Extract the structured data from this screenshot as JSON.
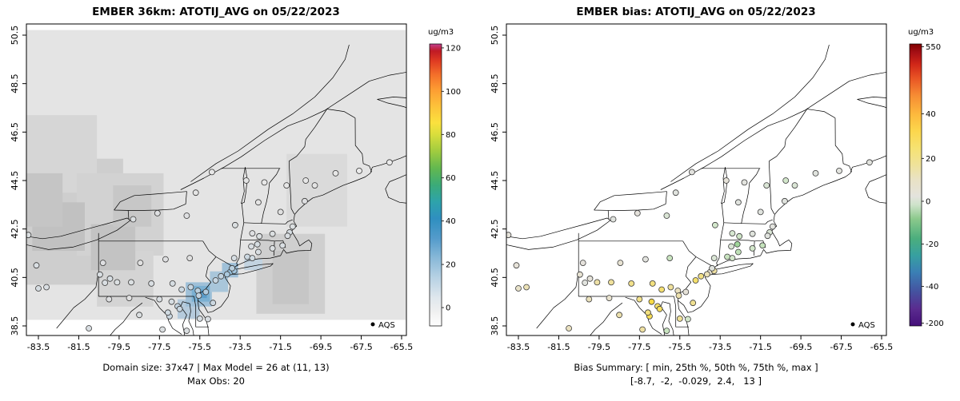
{
  "chart_data": {
    "type": "map-scatter",
    "projection": "lonlat",
    "xlim": [
      -84.1,
      -65.26
    ],
    "ylim": [
      38.1,
      50.96
    ],
    "maps": [
      {
        "title": "EMBER 36km: ATOTIJ_AVG on 05/22/2023",
        "kind": "gridded-model-field-with-obs-points",
        "xticks": [
          -83.5,
          -81.5,
          -79.5,
          -77.5,
          -75.5,
          -73.5,
          -71.5,
          -69.5,
          -67.5,
          -65.5
        ],
        "yticks": [
          38.5,
          40.5,
          42.5,
          44.5,
          46.5,
          48.5,
          50.5
        ],
        "footer_line1": "Domain size: 37x47 | Max Model = 26 at (11, 13)",
        "footer_line2": "Max Obs: 20",
        "legend_label": "AQS",
        "point_value_key": "obs",
        "point_color_anchors": [
          [
            0,
            "#f5f5f5"
          ],
          [
            6,
            "#e0e0e0"
          ],
          [
            10,
            "#d6dde2"
          ],
          [
            14,
            "#c2d3e0"
          ],
          [
            17,
            "#aac9de"
          ],
          [
            20,
            "#93bedb"
          ],
          [
            26,
            "#5ba3d0"
          ]
        ],
        "colorbar": {
          "title": "ug/m3",
          "ticks": [
            {
              "label": "0",
              "f": 0.065
            },
            {
              "label": "20",
              "f": 0.218
            },
            {
              "label": "40",
              "f": 0.372
            },
            {
              "label": "60",
              "f": 0.525
            },
            {
              "label": "80",
              "f": 0.679
            },
            {
              "label": "100",
              "f": 0.832
            },
            {
              "label": "120",
              "f": 0.986
            }
          ],
          "stops": [
            [
              0,
              "#ffffff"
            ],
            [
              0.05,
              "#f0f0f0"
            ],
            [
              0.1,
              "#dfe7ed"
            ],
            [
              0.17,
              "#b8d2e4"
            ],
            [
              0.24,
              "#89b9d8"
            ],
            [
              0.31,
              "#549bcb"
            ],
            [
              0.38,
              "#2f8fc0"
            ],
            [
              0.44,
              "#2ea3ab"
            ],
            [
              0.5,
              "#3bab78"
            ],
            [
              0.56,
              "#63b84f"
            ],
            [
              0.62,
              "#a1cc3f"
            ],
            [
              0.68,
              "#dade3c"
            ],
            [
              0.72,
              "#fbe13e"
            ],
            [
              0.78,
              "#fdc13a"
            ],
            [
              0.84,
              "#fd9b32"
            ],
            [
              0.89,
              "#f4702a"
            ],
            [
              0.94,
              "#df3b22"
            ],
            [
              0.975,
              "#c01a24"
            ],
            [
              1,
              "#c2408e"
            ]
          ]
        },
        "raster_blocks": [
          [
            -84.09,
            38.75,
            -65.3,
            50.71,
            "#e4e4e4"
          ],
          [
            -84.09,
            40.2,
            -79.3,
            45.4,
            "#cecece"
          ],
          [
            -84.09,
            44.0,
            -80.6,
            47.2,
            "#d6d6d6"
          ],
          [
            -81.6,
            41.4,
            -77.3,
            44.8,
            "#d2d2d2"
          ],
          [
            -80.6,
            39.3,
            -77.8,
            41.6,
            "#d4d4d4"
          ],
          [
            -72.7,
            39.0,
            -69.3,
            42.3,
            "#cfcfcf"
          ],
          [
            -71.2,
            42.6,
            -68.2,
            45.6,
            "#dadada"
          ],
          [
            -83.8,
            41.6,
            -81.2,
            43.6,
            "#c1c1c1"
          ],
          [
            -80.9,
            40.8,
            -78.7,
            42.7,
            "#c3c3c3"
          ],
          [
            -84.09,
            42.6,
            -82.3,
            44.8,
            "#c5c5c5"
          ],
          [
            -79.8,
            42.6,
            -77.9,
            44.3,
            "#c7c7c7"
          ],
          [
            -71.9,
            39.4,
            -70.1,
            41.6,
            "#c6c6c6"
          ],
          [
            -76.6,
            38.8,
            -75.5,
            39.6,
            "#b6cbdc"
          ],
          [
            -76.2,
            39.3,
            -74.9,
            40.3,
            "#9fc0d8"
          ],
          [
            -75.9,
            39.5,
            -75.0,
            40.15,
            "#7bb0d2"
          ],
          [
            -75.7,
            39.65,
            -75.15,
            40.0,
            "#5b9cc9"
          ],
          [
            -75.0,
            39.9,
            -74.1,
            40.75,
            "#a9c6da"
          ],
          [
            -74.4,
            40.5,
            -73.6,
            41.1,
            "#9fc0d8"
          ],
          [
            -73.3,
            40.8,
            -72.4,
            41.25,
            "#c2d3e0"
          ]
        ]
      },
      {
        "title": "EMBER bias: ATOTIJ_AVG on 05/22/2023",
        "kind": "obs-bias-points",
        "xticks": [
          -83.5,
          -81.5,
          -79.5,
          -77.5,
          -75.5,
          -73.5,
          -71.5,
          -69.5,
          -67.5,
          -65.5
        ],
        "yticks": [
          38.5,
          40.5,
          42.5,
          44.5,
          46.5,
          48.5,
          50.5
        ],
        "footer_line1": "Bias Summary: [ min, 25th %, 50th %, 75th %, max ]",
        "footer_line2": "[-8.7,  -2,  -0.029,  2.4,   13 ]",
        "legend_label": "AQS",
        "point_value_key": "bias",
        "point_color_anchors": [
          [
            -200,
            "#54278f"
          ],
          [
            -40,
            "#3a93c3"
          ],
          [
            -20,
            "#6abf71"
          ],
          [
            -10,
            "#96d292"
          ],
          [
            -6,
            "#b4ddab"
          ],
          [
            -3,
            "#d3e7cb"
          ],
          [
            -1,
            "#e0e3de"
          ],
          [
            0,
            "#e4e2de"
          ],
          [
            1,
            "#e7e2d2"
          ],
          [
            3,
            "#ece0ad"
          ],
          [
            6,
            "#f1e08b"
          ],
          [
            9,
            "#f5df66"
          ],
          [
            13,
            "#f8da45"
          ],
          [
            20,
            "#fee24f"
          ],
          [
            40,
            "#fd9a44"
          ],
          [
            550,
            "#7f0000"
          ]
        ],
        "colorbar": {
          "title": "ug/m3",
          "ticks": [
            {
              "label": "550",
              "f": 0.99
            },
            {
              "label": "40",
              "f": 0.752
            },
            {
              "label": "20",
              "f": 0.594
            },
            {
              "label": "0",
              "f": 0.442
            },
            {
              "label": "-20",
              "f": 0.29
            },
            {
              "label": "-40",
              "f": 0.14
            },
            {
              "label": "-200",
              "f": 0.01
            }
          ],
          "stops": [
            [
              0,
              "#45107a"
            ],
            [
              0.06,
              "#5a2b8f"
            ],
            [
              0.12,
              "#45519f"
            ],
            [
              0.19,
              "#3a7fb5"
            ],
            [
              0.25,
              "#37a0a0"
            ],
            [
              0.31,
              "#4bae7d"
            ],
            [
              0.38,
              "#8cc98c"
            ],
            [
              0.43,
              "#cfe3cb"
            ],
            [
              0.46,
              "#e4e3dd"
            ],
            [
              0.52,
              "#e9e2c4"
            ],
            [
              0.57,
              "#efe29b"
            ],
            [
              0.63,
              "#f6e272"
            ],
            [
              0.69,
              "#fcd74d"
            ],
            [
              0.75,
              "#fdb93d"
            ],
            [
              0.82,
              "#f68a33"
            ],
            [
              0.88,
              "#e85324"
            ],
            [
              0.93,
              "#cf2518"
            ],
            [
              0.97,
              "#a50f15"
            ],
            [
              1,
              "#7f0000"
            ]
          ]
        },
        "raster_blocks": []
      }
    ],
    "sites": [
      {
        "lon": -84.0,
        "lat": 42.25,
        "obs": 8,
        "bias": 0.3
      },
      {
        "lon": -83.6,
        "lat": 41.0,
        "obs": 9,
        "bias": 0.5
      },
      {
        "lon": -83.5,
        "lat": 40.05,
        "obs": 10,
        "bias": 1.5
      },
      {
        "lon": -83.1,
        "lat": 40.1,
        "obs": 9,
        "bias": 2.5
      },
      {
        "lon": -81.0,
        "lat": 38.4,
        "obs": 9,
        "bias": 2.0
      },
      {
        "lon": -80.45,
        "lat": 40.62,
        "obs": 9,
        "bias": 1.0
      },
      {
        "lon": -79.95,
        "lat": 40.45,
        "obs": 10,
        "bias": 0.4
      },
      {
        "lon": -80.2,
        "lat": 40.28,
        "obs": 9,
        "bias": -0.8
      },
      {
        "lon": -79.6,
        "lat": 40.3,
        "obs": 8,
        "bias": 3.5
      },
      {
        "lon": -80.3,
        "lat": 41.1,
        "obs": 7,
        "bias": 0.2
      },
      {
        "lon": -79.0,
        "lat": 39.65,
        "obs": 6,
        "bias": 1.2
      },
      {
        "lon": -80.0,
        "lat": 39.6,
        "obs": 7,
        "bias": 2.2
      },
      {
        "lon": -78.9,
        "lat": 40.3,
        "obs": 8,
        "bias": 4.5
      },
      {
        "lon": -77.9,
        "lat": 40.25,
        "obs": 9,
        "bias": 6.0
      },
      {
        "lon": -76.85,
        "lat": 40.25,
        "obs": 10,
        "bias": 7.0
      },
      {
        "lon": -76.4,
        "lat": 40.0,
        "obs": 12,
        "bias": 8.0
      },
      {
        "lon": -75.95,
        "lat": 40.1,
        "obs": 13,
        "bias": 4.5
      },
      {
        "lon": -75.6,
        "lat": 39.95,
        "obs": 15,
        "bias": 2.0
      },
      {
        "lon": -75.2,
        "lat": 39.9,
        "obs": 16,
        "bias": 0.5
      },
      {
        "lon": -77.2,
        "lat": 41.25,
        "obs": 7,
        "bias": -0.5
      },
      {
        "lon": -78.45,
        "lat": 41.1,
        "obs": 6,
        "bias": 1.0
      },
      {
        "lon": -76.0,
        "lat": 41.3,
        "obs": 6,
        "bias": -4.0
      },
      {
        "lon": -78.8,
        "lat": 42.9,
        "obs": 8,
        "bias": -1.0
      },
      {
        "lon": -77.6,
        "lat": 43.15,
        "obs": 7,
        "bias": 0.2
      },
      {
        "lon": -76.15,
        "lat": 43.05,
        "obs": 7,
        "bias": -2.0
      },
      {
        "lon": -75.7,
        "lat": 44.0,
        "obs": 5,
        "bias": -1.0
      },
      {
        "lon": -74.9,
        "lat": 44.85,
        "obs": 4,
        "bias": -0.4
      },
      {
        "lon": -73.75,
        "lat": 42.66,
        "obs": 8,
        "bias": -3.0
      },
      {
        "lon": -73.8,
        "lat": 41.3,
        "obs": 10,
        "bias": -2.0
      },
      {
        "lon": -74.0,
        "lat": 40.72,
        "obs": 20,
        "bias": 1.0
      },
      {
        "lon": -73.8,
        "lat": 40.77,
        "obs": 18,
        "bias": 4.0
      },
      {
        "lon": -74.15,
        "lat": 40.63,
        "obs": 17,
        "bias": 2.5
      },
      {
        "lon": -73.9,
        "lat": 40.88,
        "obs": 15,
        "bias": -1.0
      },
      {
        "lon": -74.45,
        "lat": 40.55,
        "obs": 14,
        "bias": 6.5
      },
      {
        "lon": -74.72,
        "lat": 40.38,
        "obs": 13,
        "bias": 8.5
      },
      {
        "lon": -74.85,
        "lat": 39.45,
        "obs": 12,
        "bias": 5.5
      },
      {
        "lon": -73.15,
        "lat": 41.35,
        "obs": 12,
        "bias": -4.0
      },
      {
        "lon": -72.9,
        "lat": 41.3,
        "obs": 11,
        "bias": -3.0
      },
      {
        "lon": -72.6,
        "lat": 41.55,
        "obs": 9,
        "bias": -5.0
      },
      {
        "lon": -72.95,
        "lat": 41.78,
        "obs": 9,
        "bias": -2.0
      },
      {
        "lon": -72.65,
        "lat": 41.87,
        "obs": 10,
        "bias": -8.7
      },
      {
        "lon": -71.9,
        "lat": 41.7,
        "obs": 8,
        "bias": -3.0
      },
      {
        "lon": -71.4,
        "lat": 41.82,
        "obs": 9,
        "bias": -4.5
      },
      {
        "lon": -71.05,
        "lat": 42.36,
        "obs": 10,
        "bias": -2.0
      },
      {
        "lon": -71.15,
        "lat": 42.22,
        "obs": 9,
        "bias": -1.0
      },
      {
        "lon": -70.9,
        "lat": 42.6,
        "obs": 8,
        "bias": -0.5
      },
      {
        "lon": -72.55,
        "lat": 42.2,
        "obs": 8,
        "bias": -3.5
      },
      {
        "lon": -72.9,
        "lat": 42.32,
        "obs": 7,
        "bias": -2.5
      },
      {
        "lon": -71.9,
        "lat": 42.3,
        "obs": 8,
        "bias": -1.2
      },
      {
        "lon": -72.6,
        "lat": 43.6,
        "obs": 5,
        "bias": -1.0
      },
      {
        "lon": -72.3,
        "lat": 44.42,
        "obs": 4,
        "bias": -0.5
      },
      {
        "lon": -73.2,
        "lat": 44.5,
        "obs": 5,
        "bias": 0.5
      },
      {
        "lon": -71.5,
        "lat": 43.2,
        "obs": 6,
        "bias": -1.0
      },
      {
        "lon": -71.2,
        "lat": 44.3,
        "obs": 4,
        "bias": -2.0
      },
      {
        "lon": -70.3,
        "lat": 43.65,
        "obs": 7,
        "bias": -1.0
      },
      {
        "lon": -70.25,
        "lat": 44.5,
        "obs": 4,
        "bias": -3.0
      },
      {
        "lon": -69.8,
        "lat": 44.3,
        "obs": 5,
        "bias": -2.0
      },
      {
        "lon": -68.77,
        "lat": 44.8,
        "obs": 4,
        "bias": -1.0
      },
      {
        "lon": -67.6,
        "lat": 44.9,
        "obs": 3,
        "bias": -0.5
      },
      {
        "lon": -66.1,
        "lat": 45.25,
        "obs": 3,
        "bias": -0.6
      },
      {
        "lon": -76.6,
        "lat": 39.31,
        "obs": 14,
        "bias": 9.0
      },
      {
        "lon": -76.5,
        "lat": 39.2,
        "obs": 13,
        "bias": 10.0
      },
      {
        "lon": -76.9,
        "lat": 39.5,
        "obs": 10,
        "bias": 13.0
      },
      {
        "lon": -77.0,
        "lat": 38.9,
        "obs": 12,
        "bias": 11.0
      },
      {
        "lon": -77.08,
        "lat": 39.05,
        "obs": 11,
        "bias": 7.0
      },
      {
        "lon": -77.5,
        "lat": 39.6,
        "obs": 9,
        "bias": 6.0
      },
      {
        "lon": -75.55,
        "lat": 39.75,
        "obs": 14,
        "bias": 3.0
      },
      {
        "lon": -75.5,
        "lat": 38.8,
        "obs": 10,
        "bias": 5.0
      },
      {
        "lon": -76.15,
        "lat": 38.3,
        "obs": 8,
        "bias": -4.0
      },
      {
        "lon": -75.1,
        "lat": 38.78,
        "obs": 9,
        "bias": -3.0
      },
      {
        "lon": -77.35,
        "lat": 38.35,
        "obs": 8,
        "bias": 4.0
      },
      {
        "lon": -78.5,
        "lat": 38.95,
        "obs": 8,
        "bias": 3.0
      }
    ]
  }
}
